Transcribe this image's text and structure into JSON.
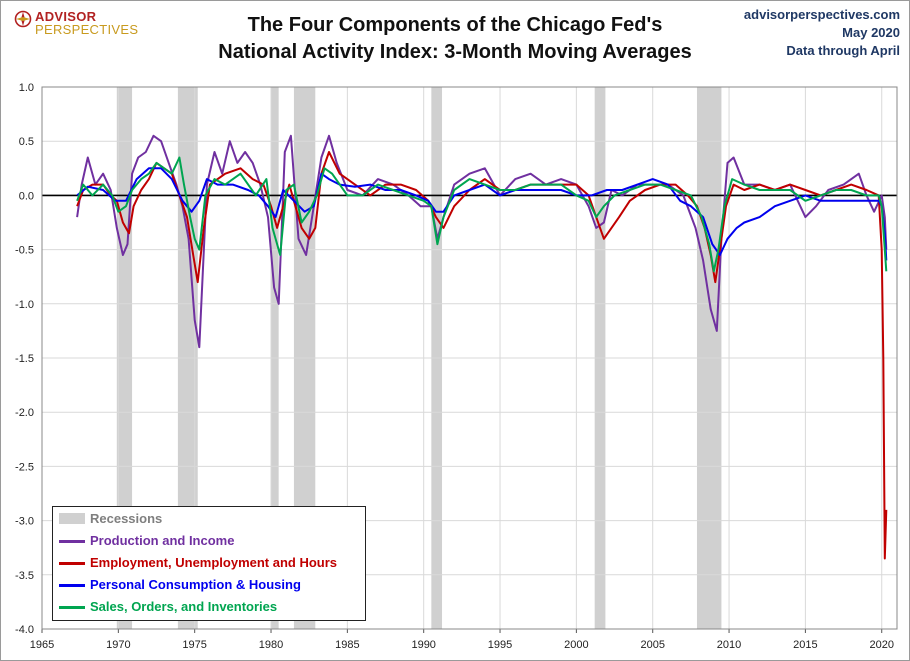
{
  "header": {
    "logo_line1": "ADVISOR",
    "logo_line2": "PERSPECTIVES",
    "title_line1": "The Four Components of the Chicago Fed's",
    "title_line2": "National Activity Index: 3-Month Moving Averages",
    "source_line1": "advisorperspectives.com",
    "source_line2": "May 2020",
    "source_line3": "Data through April"
  },
  "colors": {
    "production": "#7030a0",
    "employment": "#c00000",
    "consumption": "#0000ee",
    "sales": "#00a550",
    "recession": "#d0d0d0",
    "grid": "#d9d9d9",
    "zero_line": "#000000"
  },
  "chart_data": {
    "type": "line",
    "title": "The Four Components of the Chicago Fed's National Activity Index: 3-Month Moving Averages",
    "xlabel": "",
    "ylabel": "",
    "xlim": [
      1965,
      2021
    ],
    "ylim": [
      -4.0,
      1.0
    ],
    "x_ticks": [
      "1965",
      "1970",
      "1975",
      "1980",
      "1985",
      "1990",
      "1995",
      "2000",
      "2005",
      "2010",
      "2015",
      "2020"
    ],
    "y_ticks": [
      "1.0",
      "0.5",
      "0.0",
      "-0.5",
      "-1.0",
      "-1.5",
      "-2.0",
      "-2.5",
      "-3.0",
      "-3.5",
      "-4.0"
    ],
    "grid": true,
    "legend_position": "bottom-left",
    "recessions": [
      [
        1969.9,
        1970.9
      ],
      [
        1973.9,
        1975.2
      ],
      [
        1980.0,
        1980.5
      ],
      [
        1981.5,
        1982.9
      ],
      [
        1990.5,
        1991.2
      ],
      [
        2001.2,
        2001.9
      ],
      [
        2007.9,
        2009.5
      ]
    ],
    "legend": [
      {
        "key": "recessions",
        "label": "Recessions"
      },
      {
        "key": "production",
        "label": "Production and Income"
      },
      {
        "key": "employment",
        "label": "Employment, Unemployment and Hours"
      },
      {
        "key": "consumption",
        "label": "Personal Consumption & Housing"
      },
      {
        "key": "sales",
        "label": "Sales, Orders, and Inventories"
      }
    ],
    "series": [
      {
        "key": "production",
        "name": "Production and Income",
        "x": [
          1967.3,
          1967.6,
          1968.0,
          1968.5,
          1969.0,
          1969.5,
          1969.9,
          1970.3,
          1970.6,
          1970.9,
          1971.3,
          1971.8,
          1972.3,
          1972.8,
          1973.3,
          1973.8,
          1974.2,
          1974.6,
          1975.0,
          1975.3,
          1975.8,
          1976.3,
          1976.8,
          1977.3,
          1977.8,
          1978.3,
          1978.8,
          1979.3,
          1979.8,
          1980.2,
          1980.5,
          1980.9,
          1981.3,
          1981.8,
          1982.3,
          1982.8,
          1983.3,
          1983.8,
          1984.3,
          1985.0,
          1986.0,
          1987.0,
          1988.0,
          1989.0,
          1989.8,
          1990.5,
          1990.9,
          1991.3,
          1992.0,
          1993.0,
          1994.0,
          1995.0,
          1996.0,
          1997.0,
          1998.0,
          1999.0,
          2000.0,
          2000.8,
          2001.3,
          2001.8,
          2002.3,
          2003.0,
          2004.0,
          2005.0,
          2006.0,
          2007.0,
          2007.8,
          2008.3,
          2008.8,
          2009.2,
          2009.5,
          2009.9,
          2010.3,
          2011.0,
          2012.0,
          2013.0,
          2014.0,
          2015.0,
          2015.7,
          2016.5,
          2017.5,
          2018.5,
          2019.0,
          2019.5,
          2020.0,
          2020.2,
          2020.3
        ],
        "y": [
          -0.2,
          0.1,
          0.35,
          0.1,
          0.2,
          0.05,
          -0.3,
          -0.55,
          -0.45,
          0.2,
          0.35,
          0.4,
          0.55,
          0.5,
          0.3,
          0.1,
          -0.1,
          -0.4,
          -1.15,
          -1.4,
          0.1,
          0.4,
          0.2,
          0.5,
          0.3,
          0.4,
          0.3,
          0.1,
          -0.2,
          -0.85,
          -1.0,
          0.4,
          0.55,
          -0.4,
          -0.55,
          -0.1,
          0.35,
          0.55,
          0.3,
          0.05,
          0.0,
          0.15,
          0.1,
          0.0,
          -0.1,
          -0.1,
          -0.4,
          -0.2,
          0.1,
          0.2,
          0.25,
          0.0,
          0.15,
          0.2,
          0.1,
          0.15,
          0.1,
          -0.1,
          -0.3,
          -0.25,
          0.05,
          0.0,
          0.1,
          0.1,
          0.1,
          0.0,
          -0.3,
          -0.6,
          -1.05,
          -1.25,
          -0.4,
          0.3,
          0.35,
          0.1,
          0.1,
          0.05,
          0.1,
          -0.2,
          -0.1,
          0.05,
          0.1,
          0.2,
          0.0,
          -0.15,
          0.0,
          -0.2,
          -0.5
        ]
      },
      {
        "key": "employment",
        "name": "Employment, Unemployment and Hours",
        "x": [
          1967.3,
          1967.7,
          1968.3,
          1969.0,
          1969.5,
          1969.9,
          1970.3,
          1970.7,
          1971.0,
          1971.5,
          1972.0,
          1972.5,
          1973.0,
          1973.5,
          1974.0,
          1974.5,
          1974.9,
          1975.2,
          1975.6,
          1976.0,
          1977.0,
          1978.0,
          1978.8,
          1979.5,
          1980.0,
          1980.4,
          1980.8,
          1981.2,
          1981.6,
          1982.0,
          1982.5,
          1982.9,
          1983.3,
          1983.8,
          1984.5,
          1985.5,
          1986.5,
          1987.5,
          1988.5,
          1989.5,
          1990.3,
          1990.8,
          1991.3,
          1992.0,
          1993.0,
          1994.0,
          1995.0,
          1996.0,
          1997.0,
          1998.0,
          1999.0,
          2000.0,
          2000.8,
          2001.3,
          2001.8,
          2002.3,
          2002.8,
          2003.5,
          2004.5,
          2005.5,
          2006.5,
          2007.3,
          2007.9,
          2008.4,
          2008.8,
          2009.1,
          2009.4,
          2009.8,
          2010.3,
          2011.0,
          2012.0,
          2013.0,
          2014.0,
          2015.0,
          2016.0,
          2017.0,
          2018.0,
          2019.0,
          2019.8,
          2020.0,
          2020.1,
          2020.2,
          2020.3
        ],
        "y": [
          -0.1,
          0.05,
          0.1,
          0.1,
          0.0,
          -0.05,
          -0.25,
          -0.35,
          -0.1,
          0.05,
          0.15,
          0.3,
          0.25,
          0.2,
          0.0,
          -0.2,
          -0.55,
          -0.8,
          -0.3,
          0.1,
          0.2,
          0.25,
          0.15,
          0.1,
          -0.1,
          -0.3,
          -0.1,
          0.1,
          -0.1,
          -0.3,
          -0.4,
          -0.3,
          0.2,
          0.4,
          0.2,
          0.1,
          0.0,
          0.1,
          0.1,
          0.05,
          -0.05,
          -0.2,
          -0.3,
          -0.1,
          0.05,
          0.15,
          0.05,
          0.05,
          0.1,
          0.1,
          0.1,
          0.1,
          0.0,
          -0.2,
          -0.4,
          -0.3,
          -0.2,
          -0.05,
          0.05,
          0.1,
          0.1,
          0.0,
          -0.1,
          -0.3,
          -0.55,
          -0.8,
          -0.5,
          -0.1,
          0.1,
          0.05,
          0.1,
          0.05,
          0.1,
          0.05,
          0.0,
          0.05,
          0.1,
          0.05,
          0.0,
          -0.5,
          -1.5,
          -3.35,
          -2.9
        ]
      },
      {
        "key": "consumption",
        "name": "Personal Consumption & Housing",
        "x": [
          1967.3,
          1968.0,
          1969.0,
          1969.8,
          1970.5,
          1971.2,
          1972.0,
          1972.8,
          1973.5,
          1974.2,
          1974.8,
          1975.3,
          1975.8,
          1976.5,
          1977.5,
          1978.5,
          1979.2,
          1979.8,
          1980.3,
          1980.8,
          1981.5,
          1982.2,
          1982.8,
          1983.3,
          1983.8,
          1984.5,
          1985.5,
          1986.5,
          1987.5,
          1988.5,
          1989.5,
          1990.3,
          1990.8,
          1991.3,
          1992.0,
          1993.0,
          1994.0,
          1995.0,
          1996.0,
          1997.0,
          1998.0,
          1999.0,
          2000.0,
          2001.0,
          2002.0,
          2003.0,
          2004.0,
          2005.0,
          2006.0,
          2006.8,
          2007.5,
          2008.3,
          2008.9,
          2009.4,
          2009.9,
          2010.5,
          2011.0,
          2012.0,
          2013.0,
          2014.0,
          2015.0,
          2016.0,
          2017.0,
          2018.0,
          2019.0,
          2019.8,
          2020.0,
          2020.2,
          2020.3
        ],
        "y": [
          0.0,
          0.08,
          0.05,
          -0.05,
          -0.05,
          0.15,
          0.25,
          0.25,
          0.15,
          -0.05,
          -0.15,
          -0.05,
          0.15,
          0.1,
          0.1,
          0.05,
          0.0,
          -0.1,
          -0.2,
          0.05,
          -0.05,
          -0.15,
          -0.1,
          0.2,
          0.15,
          0.1,
          0.08,
          0.1,
          0.05,
          0.05,
          0.0,
          -0.05,
          -0.15,
          -0.15,
          0.0,
          0.05,
          0.1,
          0.0,
          0.05,
          0.05,
          0.05,
          0.05,
          0.0,
          0.0,
          0.05,
          0.05,
          0.1,
          0.15,
          0.1,
          -0.05,
          -0.1,
          -0.2,
          -0.45,
          -0.55,
          -0.4,
          -0.3,
          -0.25,
          -0.2,
          -0.1,
          -0.05,
          0.0,
          -0.05,
          -0.05,
          -0.05,
          -0.05,
          -0.05,
          -0.1,
          -0.35,
          -0.6
        ]
      },
      {
        "key": "sales",
        "name": "Sales, Orders, and Inventories",
        "x": [
          1967.3,
          1967.7,
          1968.3,
          1969.0,
          1969.6,
          1970.0,
          1970.5,
          1970.9,
          1971.5,
          1972.0,
          1972.5,
          1973.0,
          1973.5,
          1974.0,
          1974.3,
          1974.7,
          1975.0,
          1975.3,
          1975.7,
          1976.3,
          1977.0,
          1978.0,
          1979.0,
          1979.7,
          1980.1,
          1980.6,
          1981.0,
          1981.5,
          1982.0,
          1982.5,
          1983.0,
          1983.5,
          1984.0,
          1985.0,
          1986.0,
          1987.0,
          1988.0,
          1989.0,
          1990.0,
          1990.5,
          1990.9,
          1991.3,
          1992.0,
          1993.0,
          1994.0,
          1995.0,
          1996.0,
          1997.0,
          1998.0,
          1999.0,
          2000.0,
          2000.8,
          2001.3,
          2001.8,
          2002.5,
          2003.5,
          2004.5,
          2005.5,
          2006.5,
          2007.5,
          2008.2,
          2008.7,
          2009.0,
          2009.3,
          2009.7,
          2010.2,
          2011.0,
          2012.0,
          2013.0,
          2014.0,
          2015.0,
          2016.0,
          2017.0,
          2018.0,
          2019.0,
          2019.8,
          2020.0,
          2020.2,
          2020.3
        ],
        "y": [
          -0.05,
          0.1,
          0.0,
          0.1,
          0.0,
          -0.15,
          -0.1,
          0.05,
          0.15,
          0.2,
          0.3,
          0.25,
          0.2,
          0.35,
          0.1,
          -0.2,
          -0.4,
          -0.5,
          0.0,
          0.15,
          0.1,
          0.2,
          0.0,
          0.15,
          -0.3,
          -0.55,
          0.05,
          0.1,
          -0.25,
          -0.15,
          0.0,
          0.25,
          0.2,
          0.0,
          0.0,
          0.1,
          0.05,
          0.0,
          -0.05,
          -0.1,
          -0.45,
          -0.2,
          0.05,
          0.15,
          0.1,
          0.05,
          0.05,
          0.1,
          0.1,
          0.1,
          0.0,
          -0.05,
          -0.2,
          -0.1,
          0.0,
          0.05,
          0.1,
          0.1,
          0.05,
          0.0,
          -0.2,
          -0.45,
          -0.7,
          -0.5,
          -0.1,
          0.15,
          0.1,
          0.05,
          0.05,
          0.05,
          -0.05,
          0.0,
          0.05,
          0.05,
          0.0,
          0.0,
          -0.1,
          -0.5,
          -0.7
        ]
      }
    ]
  }
}
